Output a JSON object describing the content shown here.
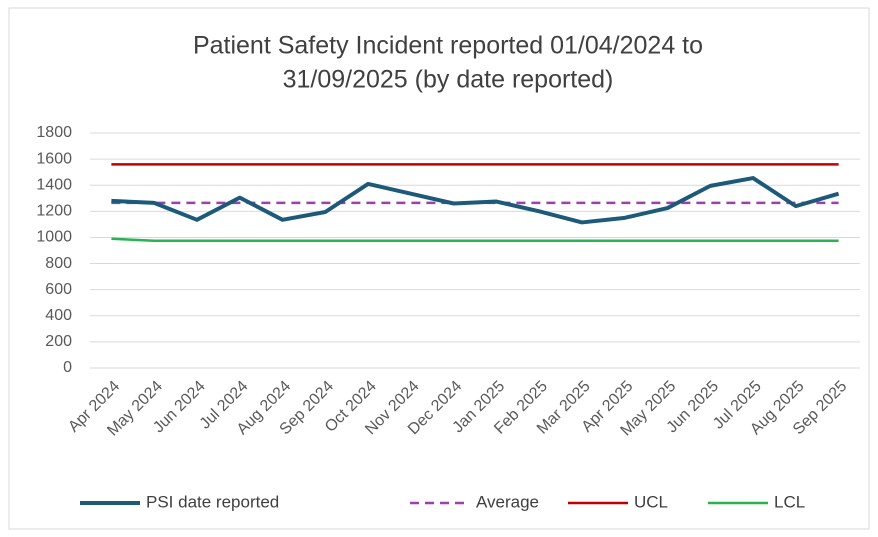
{
  "chart_data": {
    "type": "line",
    "title": [
      "Patient Safety Incident  reported 01/04/2024 to",
      "31/09/2025 (by date reported)"
    ],
    "categories": [
      "Apr 2024",
      "May 2024",
      "Jun 2024",
      "Jul 2024",
      "Aug 2024",
      "Sep 2024",
      "Oct 2024",
      "Nov 2024",
      "Dec 2024",
      "Jan 2025",
      "Feb 2025",
      "Mar 2025",
      "Apr 2025",
      "May 2025",
      "Jun 2025",
      "Jul 2025",
      "Aug 2025",
      "Sep 2025"
    ],
    "series": [
      {
        "name": "PSI date reported",
        "color": "#1d5a7a",
        "values": [
          1280,
          1265,
          1135,
          1305,
          1135,
          1195,
          1410,
          1335,
          1260,
          1275,
          1200,
          1115,
          1150,
          1225,
          1395,
          1455,
          1240,
          1335
        ]
      },
      {
        "name": "Average",
        "color": "#9e3fae",
        "dashed": true,
        "values": [
          1265,
          1265,
          1265,
          1265,
          1265,
          1265,
          1265,
          1265,
          1265,
          1265,
          1265,
          1265,
          1265,
          1265,
          1265,
          1265,
          1265,
          1265
        ]
      },
      {
        "name": "UCL",
        "color": "#c00000",
        "values": [
          1560,
          1560,
          1560,
          1560,
          1560,
          1560,
          1560,
          1560,
          1560,
          1560,
          1560,
          1560,
          1560,
          1560,
          1560,
          1560,
          1560,
          1560
        ]
      },
      {
        "name": "LCL",
        "color": "#28b34f",
        "values": [
          990,
          975,
          975,
          975,
          975,
          975,
          975,
          975,
          975,
          975,
          975,
          975,
          975,
          975,
          975,
          975,
          975,
          975
        ]
      }
    ],
    "ylim": [
      0,
      1800
    ],
    "yticks": [
      0,
      200,
      400,
      600,
      800,
      1000,
      1200,
      1400,
      1600,
      1800
    ],
    "grid": true,
    "legend": "bottom"
  }
}
